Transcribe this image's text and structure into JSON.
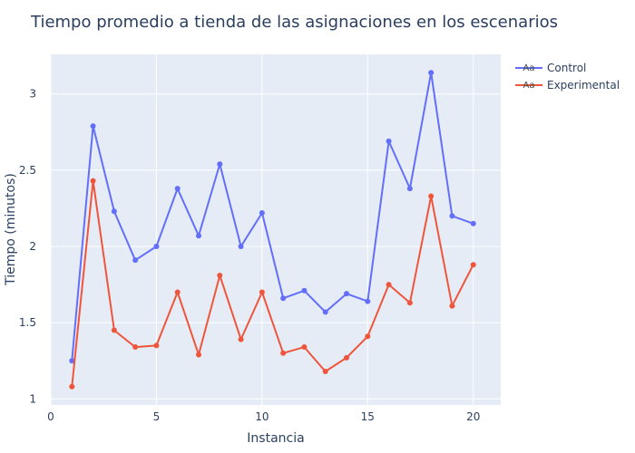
{
  "chart_data": {
    "type": "line",
    "title": "Tiempo promedio a tienda de las asignaciones en los escenarios",
    "xlabel": "Instancia",
    "ylabel": "Tiempo (minutos)",
    "xlim": [
      0,
      21.3
    ],
    "ylim": [
      0.96,
      3.26
    ],
    "xticks": [
      0,
      5,
      10,
      15,
      20
    ],
    "yticks": [
      1,
      1.5,
      2,
      2.5,
      3
    ],
    "grid": true,
    "legend_position": "top-right",
    "x": [
      1,
      2,
      3,
      4,
      5,
      6,
      7,
      8,
      9,
      10,
      11,
      12,
      13,
      14,
      15,
      16,
      17,
      18,
      19,
      20
    ],
    "series": [
      {
        "name": "Control",
        "color": "#636efa",
        "values": [
          1.25,
          2.79,
          2.23,
          1.91,
          2.0,
          2.38,
          2.07,
          2.54,
          2.0,
          2.22,
          1.66,
          1.71,
          1.57,
          1.69,
          1.64,
          2.69,
          2.38,
          3.14,
          2.2,
          2.15
        ]
      },
      {
        "name": "Experimental",
        "color": "#ef553b",
        "values": [
          1.08,
          2.43,
          1.45,
          1.34,
          1.35,
          1.7,
          1.29,
          1.81,
          1.39,
          1.7,
          1.3,
          1.34,
          1.18,
          1.27,
          1.41,
          1.75,
          1.63,
          2.33,
          1.61,
          1.88
        ]
      }
    ],
    "legend_symbol_text": "Aa"
  }
}
